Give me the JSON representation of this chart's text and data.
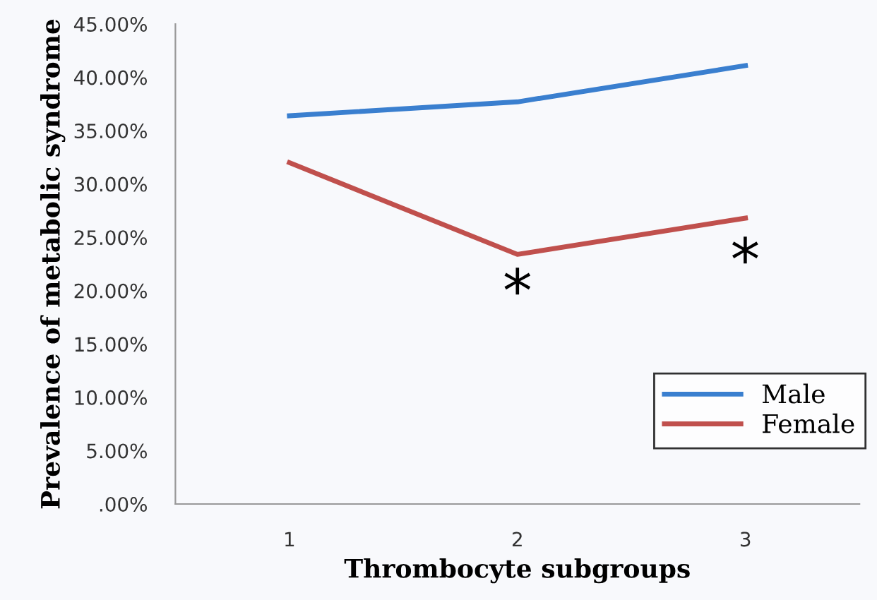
{
  "chart_data": {
    "type": "line",
    "xlabel": "Thrombocyte subgroups",
    "ylabel": "Prevalence of metabolic syndrome",
    "categories": [
      "1",
      "2",
      "3"
    ],
    "series": [
      {
        "name": "Male",
        "color": "#3a7fcf",
        "values": [
          36.4,
          37.7,
          41.1
        ]
      },
      {
        "name": "Female",
        "color": "#c0504d",
        "values": [
          32.0,
          23.4,
          26.8
        ]
      }
    ],
    "ylim": [
      0,
      45
    ],
    "yticks": [
      {
        "value": 0,
        "label": ".00%"
      },
      {
        "value": 5,
        "label": "5.00%"
      },
      {
        "value": 10,
        "label": "10.00%"
      },
      {
        "value": 15,
        "label": "15.00%"
      },
      {
        "value": 20,
        "label": "20.00%"
      },
      {
        "value": 25,
        "label": "25.00%"
      },
      {
        "value": 30,
        "label": "30.00%"
      },
      {
        "value": 35,
        "label": "35.00%"
      },
      {
        "value": 40,
        "label": "40.00%"
      },
      {
        "value": 45,
        "label": "45.00%"
      }
    ],
    "annotations": [
      "*",
      "*"
    ],
    "legend": "bottom right",
    "marker": "none",
    "line_style": "solid",
    "grid": false
  }
}
